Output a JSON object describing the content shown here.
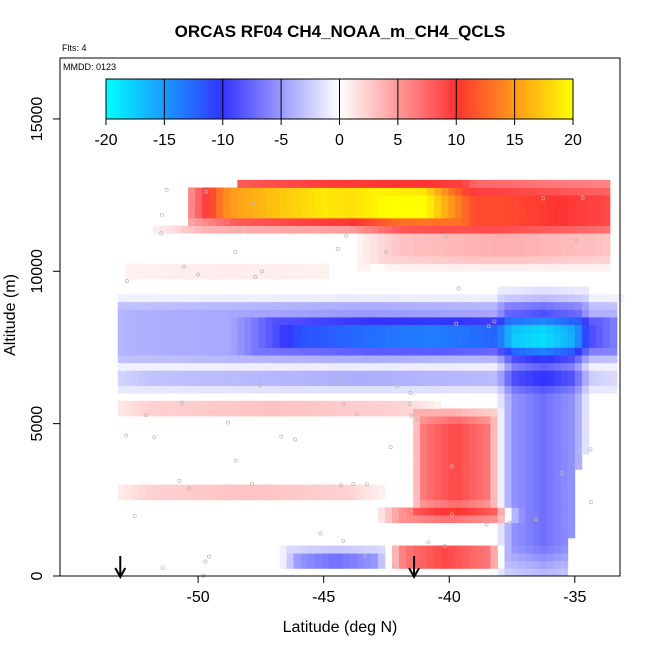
{
  "chart_data": {
    "type": "heatmap",
    "title": "ORCAS RF04 CH4_NOAA_m_CH4_QCLS",
    "flights_label": "Flts: 4",
    "mmdd_label": "MMDD: 0123",
    "xlabel": "Latitude (deg N)",
    "ylabel": "Altitude (m)",
    "xlim": [
      -55.5,
      -33.2
    ],
    "ylim": [
      0,
      17000
    ],
    "x_ticks": [
      -50,
      -45,
      -40,
      -35
    ],
    "y_ticks": [
      0,
      5000,
      10000,
      15000
    ],
    "colorbar": {
      "min": -20,
      "max": 20,
      "ticks": [
        -20,
        -15,
        -10,
        -5,
        0,
        5,
        10,
        15,
        20
      ],
      "stops": [
        "#00ffff",
        "#3333ff",
        "#ffffff",
        "#ff3333",
        "#ffff00"
      ]
    },
    "arrow_latitudes": [
      -53.1,
      -41.4
    ],
    "features": [
      {
        "name": "upper positive layer",
        "lat": [
          -48.5,
          -33.5
        ],
        "alt": [
          11500,
          13000
        ],
        "value": 8
      },
      {
        "name": "upper-left strong positive core",
        "lat": [
          -49.0,
          -41.0
        ],
        "alt": [
          11800,
          12700
        ],
        "value": 12
      },
      {
        "name": "upper-right positive layer",
        "lat": [
          -42.0,
          -33.8
        ],
        "alt": [
          10500,
          12400
        ],
        "value": 4
      },
      {
        "name": "mid-level negative band",
        "lat": [
          -53.0,
          -33.3
        ],
        "alt": [
          7200,
          8800
        ],
        "value": -5
      },
      {
        "name": "mid-level negative core",
        "lat": [
          -46.0,
          -35.0
        ],
        "alt": [
          7500,
          8300
        ],
        "value": -9
      },
      {
        "name": "eastern negative column",
        "lat": [
          -37.5,
          -35.0
        ],
        "alt": [
          1000,
          8000
        ],
        "value": -7
      },
      {
        "name": "lower positive column",
        "lat": [
          -41.0,
          -38.5
        ],
        "alt": [
          2500,
          5000
        ],
        "value": 9
      },
      {
        "name": "negative band near 6500 m",
        "lat": [
          -52.0,
          -35.0
        ],
        "alt": [
          6200,
          6700
        ],
        "value": -4
      },
      {
        "name": "positive band near 5500 m",
        "lat": [
          -52.0,
          -42.0
        ],
        "alt": [
          5300,
          5700
        ],
        "value": 3
      },
      {
        "name": "low-level positive layer",
        "lat": [
          -42.0,
          -38.0
        ],
        "alt": [
          1800,
          2200
        ],
        "value": 7
      },
      {
        "name": "surface positive patch",
        "lat": [
          -41.8,
          -38.5
        ],
        "alt": [
          300,
          900
        ],
        "value": 9
      },
      {
        "name": "surface negative patch",
        "lat": [
          -46.0,
          -43.0
        ],
        "alt": [
          300,
          800
        ],
        "value": -7
      },
      {
        "name": "low positive band",
        "lat": [
          -52.0,
          -44.0
        ],
        "alt": [
          2600,
          3000
        ],
        "value": 3
      },
      {
        "name": "upper-left faint positive",
        "lat": [
          -52.5,
          -45.0
        ],
        "alt": [
          9700,
          10300
        ],
        "value": 1
      }
    ]
  }
}
